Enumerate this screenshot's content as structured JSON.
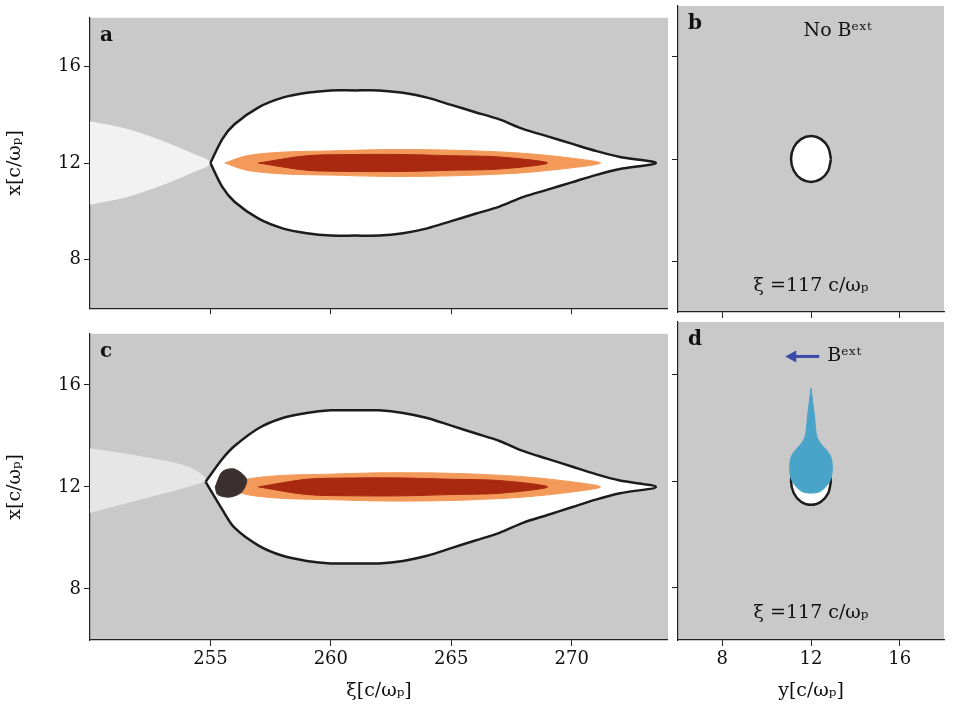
{
  "chart_data": [
    {
      "type": "line",
      "label": "a",
      "ylabel": "x[c/ωₚ]",
      "xlim": [
        250,
        274
      ],
      "xticks": [
        255,
        260,
        265,
        270
      ],
      "ylim": [
        6,
        18
      ],
      "yticks": [
        8,
        12,
        16
      ],
      "tick_labels": "y",
      "grid": false,
      "series": [
        {
          "type": "area",
          "color": "#f2f2f2",
          "x": [
            250,
            251.5,
            253,
            254.2,
            255,
            254.2,
            253,
            251.5,
            250
          ],
          "values": [
            10.3,
            10.6,
            11.1,
            11.6,
            12,
            12.4,
            12.9,
            13.4,
            13.7
          ]
        },
        {
          "type": "area",
          "color": "#ffffff",
          "line_style": "solid",
          "x": [
            255,
            255.5,
            256,
            257,
            258,
            259,
            260,
            261,
            262,
            263,
            264,
            265,
            266,
            267,
            268,
            269,
            270,
            271,
            272,
            273.5,
            272,
            271,
            270,
            269,
            268,
            267,
            266,
            265,
            264,
            263,
            262,
            261,
            260,
            259,
            258,
            257,
            256,
            255.5,
            255
          ],
          "values": [
            12,
            13.0,
            13.6,
            14.3,
            14.7,
            14.9,
            15.0,
            15.0,
            15.0,
            14.9,
            14.7,
            14.4,
            14.1,
            13.8,
            13.4,
            13.1,
            12.8,
            12.5,
            12.25,
            12,
            11.75,
            11.5,
            11.2,
            10.9,
            10.6,
            10.2,
            9.9,
            9.6,
            9.3,
            9.1,
            9.0,
            9.0,
            9.0,
            9.1,
            9.3,
            9.7,
            10.4,
            11.0,
            12
          ]
        },
        {
          "type": "area",
          "color": "#f39a5a",
          "x": [
            255.6,
            256.5,
            258,
            260,
            262,
            264,
            266,
            268,
            270,
            271.2,
            270,
            268,
            266,
            264,
            262,
            260,
            258,
            256.5,
            255.6
          ],
          "values": [
            12,
            12.3,
            12.45,
            12.5,
            12.55,
            12.55,
            12.5,
            12.4,
            12.2,
            12,
            11.8,
            11.6,
            11.5,
            11.45,
            11.45,
            11.5,
            11.55,
            11.7,
            12
          ]
        },
        {
          "type": "area",
          "color": "#a8290f",
          "x": [
            257,
            259,
            261,
            263,
            265,
            267,
            269,
            267,
            265,
            263,
            261,
            259,
            257
          ],
          "values": [
            12,
            12.3,
            12.35,
            12.35,
            12.3,
            12.25,
            12,
            11.75,
            11.7,
            11.65,
            11.65,
            11.7,
            12
          ]
        }
      ],
      "annotations": []
    },
    {
      "type": "line",
      "label": "b",
      "xlim": [
        6,
        18
      ],
      "xticks": [
        8,
        12,
        16
      ],
      "ylim": [
        6,
        18
      ],
      "yticks": [
        8,
        12,
        16
      ],
      "tick_labels": false,
      "grid": false,
      "series": [
        {
          "type": "area",
          "color": "#ffffff",
          "line_style": "solid",
          "x": [
            12.9,
            12.78,
            12.45,
            12,
            11.55,
            11.22,
            11.1,
            11.22,
            11.55,
            12,
            12.45,
            12.78,
            12.9
          ],
          "values": [
            12,
            12.45,
            12.78,
            12.9,
            12.78,
            12.45,
            12,
            11.55,
            11.22,
            11.1,
            11.22,
            11.55,
            12
          ]
        }
      ],
      "annotations": [
        {
          "text": "No Bᵉˣᵗ",
          "x": 13.2,
          "y": 17
        },
        {
          "text": "ξ =117 c/ωₚ",
          "x": 12,
          "y": 7
        }
      ]
    },
    {
      "type": "line",
      "label": "c",
      "xlabel": "ξ[c/ωₚ]",
      "ylabel": "x[c/ωₚ]",
      "xlim": [
        250,
        274
      ],
      "xticks": [
        255,
        260,
        265,
        270
      ],
      "ylim": [
        6,
        18
      ],
      "yticks": [
        8,
        12,
        16
      ],
      "tick_labels": true,
      "grid": false,
      "series": [
        {
          "type": "area",
          "color": "#e6e6e6",
          "x": [
            250,
            252,
            254,
            254.8,
            254,
            252,
            250
          ],
          "values": [
            11.0,
            11.5,
            12.0,
            12.3,
            12.8,
            13.2,
            13.5
          ]
        },
        {
          "type": "area",
          "color": "#ffffff",
          "line_style": "solid",
          "x": [
            254.8,
            255.5,
            256,
            257,
            258,
            259,
            260,
            261,
            262,
            263,
            264,
            265,
            266,
            267,
            268,
            269,
            270,
            271,
            272,
            273.5,
            272,
            271,
            270,
            269,
            268,
            267,
            266,
            265,
            264,
            263,
            262,
            261,
            260,
            259,
            258,
            257,
            256,
            255.5,
            254.8
          ],
          "values": [
            12.2,
            13.1,
            13.6,
            14.3,
            14.7,
            14.9,
            15.0,
            15.0,
            15.0,
            14.9,
            14.7,
            14.4,
            14.1,
            13.8,
            13.4,
            13.1,
            12.8,
            12.5,
            12.25,
            12,
            11.75,
            11.5,
            11.2,
            10.9,
            10.6,
            10.2,
            9.9,
            9.6,
            9.3,
            9.1,
            9.0,
            9.0,
            9.0,
            9.1,
            9.3,
            9.7,
            10.4,
            11.1,
            12.2
          ]
        },
        {
          "type": "area",
          "color": "#f39a5a",
          "x": [
            255.6,
            256.5,
            258,
            260,
            262,
            264,
            266,
            268,
            270,
            271.2,
            270,
            268,
            266,
            264,
            262,
            260,
            258,
            256.5,
            255.6
          ],
          "values": [
            12,
            12.3,
            12.45,
            12.5,
            12.55,
            12.55,
            12.5,
            12.4,
            12.2,
            12,
            11.8,
            11.6,
            11.5,
            11.45,
            11.45,
            11.5,
            11.55,
            11.7,
            12
          ]
        },
        {
          "type": "area",
          "color": "#a8290f",
          "x": [
            257,
            259,
            261,
            263,
            265,
            267,
            269,
            267,
            265,
            263,
            261,
            259,
            257
          ],
          "values": [
            12,
            12.3,
            12.35,
            12.35,
            12.3,
            12.25,
            12,
            11.75,
            11.7,
            11.65,
            11.65,
            11.7,
            12
          ]
        },
        {
          "type": "area",
          "color": "#3b3030",
          "x": [
            255.2,
            255.5,
            256.0,
            256.5,
            256.3,
            255.8,
            255.3,
            255.2
          ],
          "values": [
            12.0,
            12.6,
            12.7,
            12.3,
            11.8,
            11.6,
            11.7,
            12.0
          ]
        }
      ],
      "annotations": []
    },
    {
      "type": "line",
      "label": "d",
      "xlabel": "y[c/ωₚ]",
      "xlim": [
        6,
        18
      ],
      "xticks": [
        8,
        12,
        16
      ],
      "ylim": [
        6,
        18
      ],
      "yticks": [
        8,
        12,
        16
      ],
      "tick_labels": "x",
      "grid": false,
      "series": [
        {
          "type": "area",
          "color": "#ffffff",
          "line_style": "solid",
          "x": [
            12.9,
            12.78,
            12.45,
            12,
            11.55,
            11.22,
            11.1,
            11.22,
            11.55,
            12,
            12.45,
            12.78,
            12.9
          ],
          "values": [
            12,
            12.45,
            12.78,
            12.9,
            12.78,
            12.45,
            12,
            11.55,
            11.22,
            11.1,
            11.22,
            11.55,
            12
          ]
        },
        {
          "type": "area",
          "color": "#4aa3c8",
          "x": [
            12,
            12.15,
            12.3,
            12.9,
            12.9,
            12.4,
            11.6,
            11.1,
            11.1,
            11.7,
            11.85,
            12
          ],
          "values": [
            15.5,
            14.5,
            13.6,
            12.9,
            12.1,
            11.6,
            11.6,
            12.1,
            12.9,
            13.6,
            14.5,
            15.5
          ]
        }
      ],
      "annotations": [
        {
          "text": "Bᵉˣᵗ",
          "x": 13.5,
          "y": 16.7,
          "marker": "arrow"
        },
        {
          "text": "ξ =117 c/ωₚ",
          "x": 12,
          "y": 7
        }
      ]
    }
  ]
}
